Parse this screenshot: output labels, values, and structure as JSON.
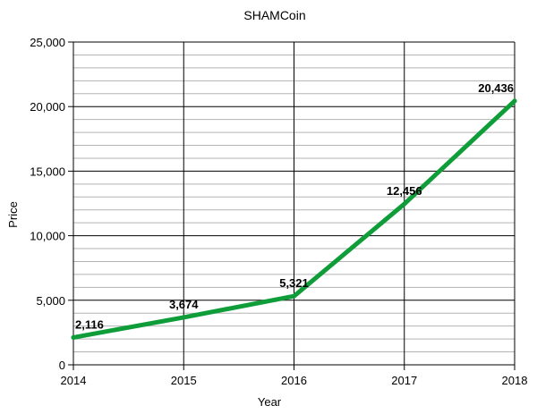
{
  "chart_data": {
    "type": "line",
    "title": "SHAMCoin",
    "xlabel": "Year",
    "ylabel": "Price",
    "x": [
      "2014",
      "2015",
      "2016",
      "2017",
      "2018"
    ],
    "series": [
      {
        "values": [
          2116,
          3674,
          5321,
          12456,
          20436
        ]
      }
    ],
    "data_labels": [
      "2,116",
      "3,674",
      "5,321",
      "12,456",
      "20,436"
    ],
    "ylim": [
      0,
      25000
    ],
    "y_major_ticks": [
      0,
      5000,
      10000,
      15000,
      20000,
      25000
    ],
    "y_tick_labels": [
      "0",
      "5,000",
      "10,000",
      "15,000",
      "20,000",
      "25,000"
    ],
    "y_minor_step": 1000,
    "grid": true,
    "legend": "none",
    "colors": {
      "line": "#0f9d3a",
      "grid_major": "#000000",
      "grid_minor": "#b3b3b3"
    }
  }
}
